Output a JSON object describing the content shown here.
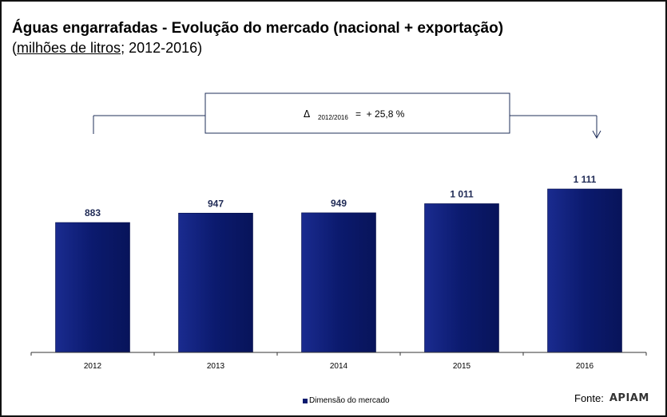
{
  "title": "Águas engarrafadas - Evolução do mercado (nacional + exportação)",
  "subtitle": {
    "open": "(",
    "underlined": "milhões de litros",
    "rest": "; 2012-2016)"
  },
  "growth_box": {
    "delta_symbol": "Δ",
    "period": "2012/2016",
    "text": "=  + 25,8 %"
  },
  "legend": {
    "label": "Dimensão do mercado"
  },
  "source": {
    "label": "Fonte:",
    "logo_text": "APIAM"
  },
  "colors": {
    "bar": "#0b1a6e",
    "bar_highlight": "#1a2b8f",
    "axis": "#333333"
  },
  "chart_data": {
    "type": "bar",
    "categories": [
      "2012",
      "2013",
      "2014",
      "2015",
      "2016"
    ],
    "series": [
      {
        "name": "Dimensão do mercado",
        "values": [
          883,
          947,
          949,
          1011,
          1111
        ]
      }
    ],
    "data_labels": [
      "883",
      "947",
      "949",
      "1 011",
      "1 111"
    ],
    "title": "Águas engarrafadas - Evolução do mercado (nacional + exportação)",
    "xlabel": "",
    "ylabel": "",
    "grid": false,
    "legend_position": "bottom"
  }
}
